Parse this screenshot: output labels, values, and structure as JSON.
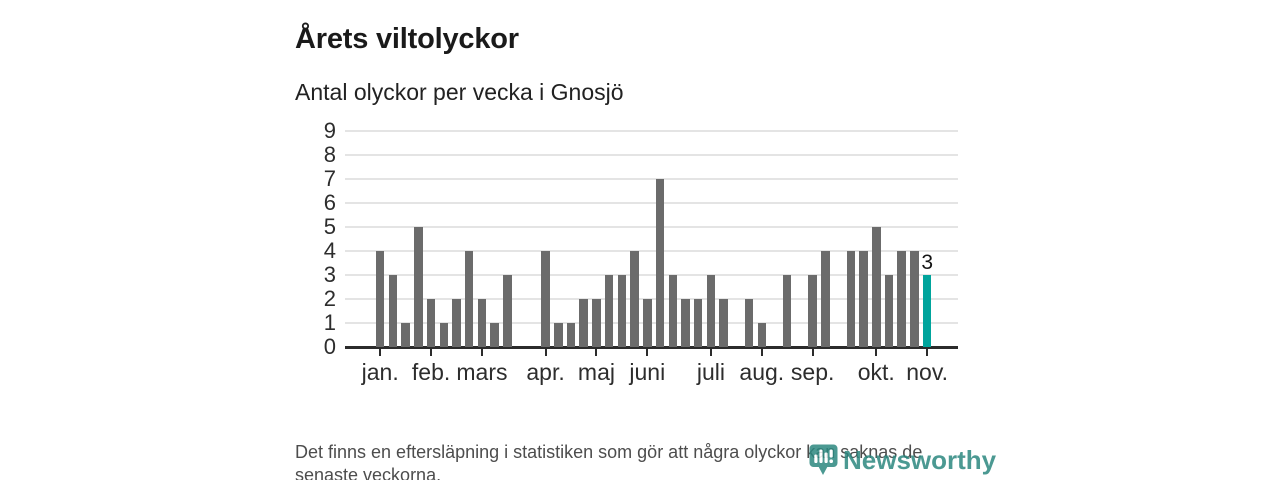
{
  "chart_data": {
    "type": "bar",
    "title": "Årets viltolyckor",
    "subtitle": "Antal olyckor per vecka i Gnosjö",
    "values": [
      4,
      3,
      1,
      5,
      2,
      1,
      2,
      4,
      2,
      1,
      3,
      0,
      0,
      4,
      1,
      1,
      2,
      2,
      3,
      3,
      4,
      2,
      7,
      3,
      2,
      2,
      3,
      2,
      0,
      2,
      1,
      0,
      3,
      0,
      3,
      4,
      0,
      4,
      4,
      5,
      3,
      4,
      4,
      3
    ],
    "first_week_number": 1,
    "ylim": [
      0,
      9
    ],
    "yticks": [
      0,
      1,
      2,
      3,
      4,
      5,
      6,
      7,
      8,
      9
    ],
    "grid": "horizontal",
    "legend": "none",
    "month_ticks": [
      {
        "label": "jan.",
        "week_index": 0
      },
      {
        "label": "feb.",
        "week_index": 4
      },
      {
        "label": "mars",
        "week_index": 8
      },
      {
        "label": "apr.",
        "week_index": 13
      },
      {
        "label": "maj",
        "week_index": 17
      },
      {
        "label": "juni",
        "week_index": 21
      },
      {
        "label": "juli",
        "week_index": 26
      },
      {
        "label": "aug.",
        "week_index": 30
      },
      {
        "label": "sep.",
        "week_index": 34
      },
      {
        "label": "okt.",
        "week_index": 39
      },
      {
        "label": "nov.",
        "week_index": 43
      }
    ],
    "highlight": {
      "week_index": 43,
      "value": 3,
      "label": "3"
    }
  },
  "footer": {
    "lines": [
      "Det finns en eftersläpning i statistiken som gör att några olyckor kan saknas de",
      "senaste veckorna."
    ]
  },
  "logo": {
    "text": "Newsworthy",
    "icon": "newsworthy-pin-chart-icon"
  },
  "colors": {
    "background": "#ffffff",
    "bar": "#6b6b6b",
    "accent": "#00a49c",
    "axis": "#2b2b2b",
    "grid": "#e4e4e4",
    "title": "#1a1a1a",
    "labels": "#2d2d2d",
    "footnote": "#4d4d4d",
    "logo": "#2c8880"
  }
}
